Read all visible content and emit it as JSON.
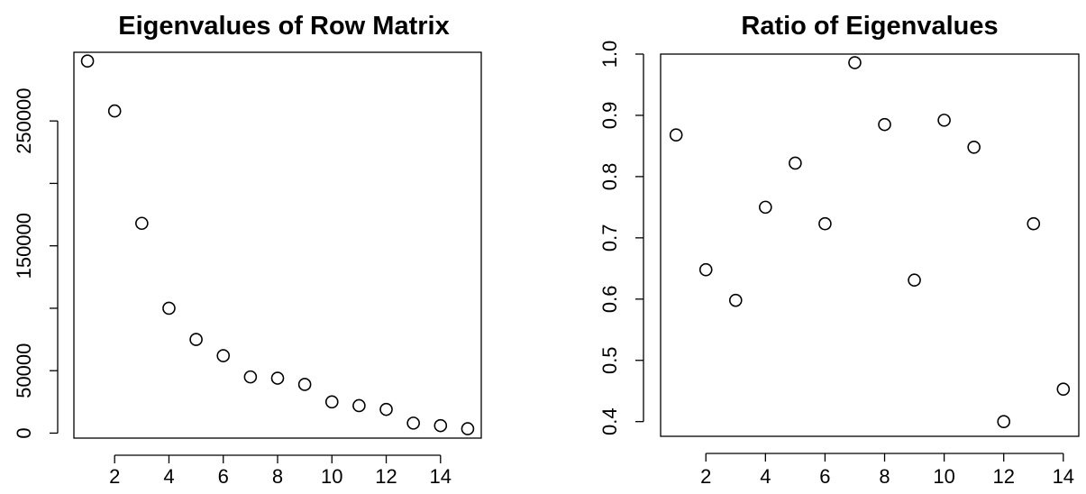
{
  "chart_data": [
    {
      "type": "scatter",
      "title": "Eigenvalues of Row Matrix",
      "xlabel": "",
      "ylabel": "",
      "x": [
        1,
        2,
        3,
        4,
        5,
        6,
        7,
        8,
        9,
        10,
        11,
        12,
        13,
        14,
        15
      ],
      "y": [
        298000,
        258000,
        168000,
        100000,
        75000,
        62000,
        45000,
        44000,
        39000,
        25000,
        22000,
        19000,
        8000,
        6000,
        3500
      ],
      "xlim": [
        0.5,
        15.5
      ],
      "ylim": [
        -4000,
        305000
      ],
      "xticks": [
        2,
        4,
        6,
        8,
        10,
        12,
        14
      ],
      "xtick_labels": [
        "2",
        "4",
        "6",
        "8",
        "10",
        "12",
        "14"
      ],
      "yticks": [
        0,
        50000,
        100000,
        150000,
        200000,
        250000
      ],
      "ytick_labels": [
        "0",
        "50000",
        "",
        "150000",
        "",
        "250000"
      ],
      "grid": false,
      "marker": "open-circle",
      "color": "#000000"
    },
    {
      "type": "scatter",
      "title": "Ratio of Eigenvalues",
      "xlabel": "",
      "ylabel": "",
      "x": [
        1,
        2,
        3,
        4,
        5,
        6,
        7,
        8,
        9,
        10,
        11,
        12,
        13,
        14
      ],
      "y": [
        0.868,
        0.648,
        0.598,
        0.75,
        0.822,
        0.723,
        0.986,
        0.885,
        0.631,
        0.892,
        0.848,
        0.4,
        0.723,
        0.453
      ],
      "xlim": [
        0.48,
        14.52
      ],
      "ylim": [
        0.376,
        1.0
      ],
      "xticks": [
        2,
        4,
        6,
        8,
        10,
        12,
        14
      ],
      "xtick_labels": [
        "2",
        "4",
        "6",
        "8",
        "10",
        "12",
        "14"
      ],
      "yticks": [
        0.4,
        0.5,
        0.6,
        0.7,
        0.8,
        0.9,
        1.0
      ],
      "ytick_labels": [
        "0.4",
        "0.5",
        "0.6",
        "0.7",
        "0.8",
        "0.9",
        "1.0"
      ],
      "grid": false,
      "marker": "open-circle",
      "color": "#000000"
    }
  ]
}
